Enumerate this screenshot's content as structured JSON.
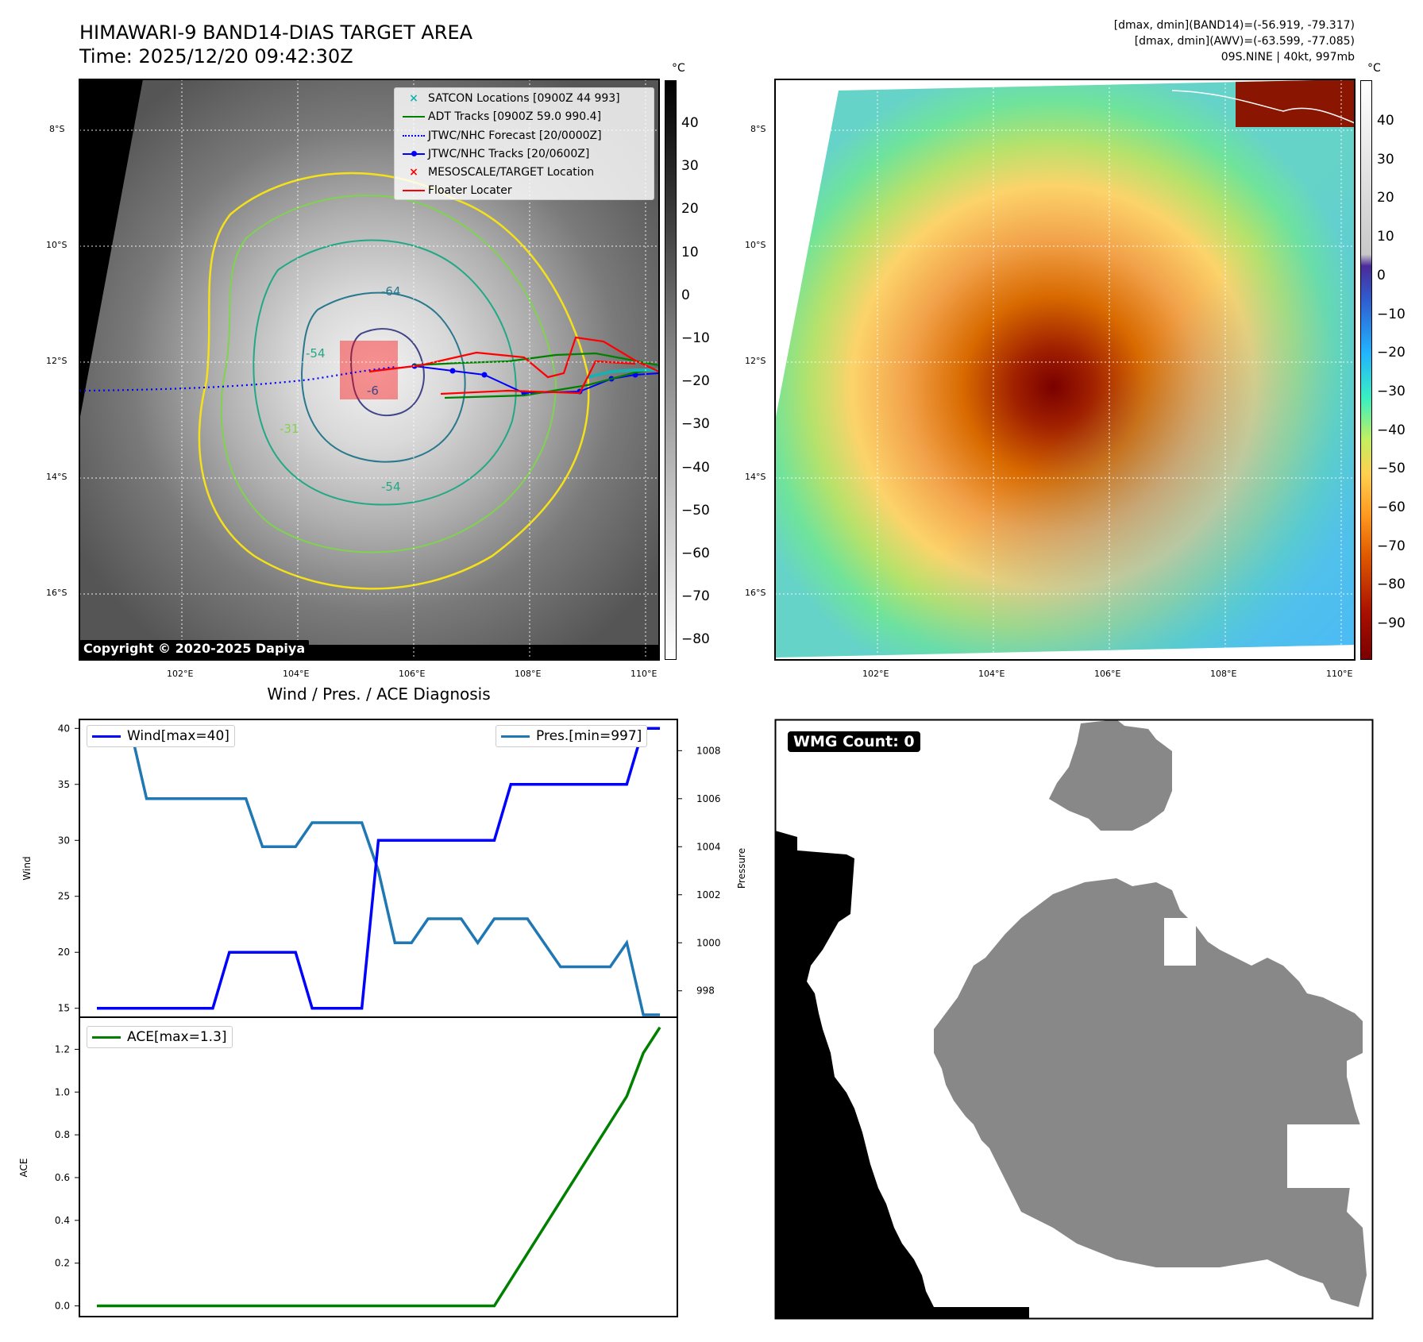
{
  "header": {
    "title_line1": "HIMAWARI-9 BAND14-DIAS TARGET AREA",
    "title_line2": "Time: 2025/12/20 09:42:30Z",
    "stats_line1": "[dmax, dmin](BAND14)=(-56.919, -79.317)",
    "stats_line2": "[dmax, dmin](AWV)=(-63.599, -77.085)",
    "stats_line3": "09S.NINE | 40kt, 997mb"
  },
  "map": {
    "lat_labels": [
      "8°S",
      "10°S",
      "12°S",
      "14°S",
      "16°S"
    ],
    "lon_labels": [
      "102°E",
      "104°E",
      "106°E",
      "108°E",
      "110°E"
    ],
    "copyright": "Copyright © 2020-2025 Dapiya",
    "contour_labels": [
      "-64",
      "-54",
      "-54",
      "-31",
      "-6"
    ],
    "legend": [
      {
        "label": "SATCON Locations [0900Z 44 993]",
        "color": "#1ab0b0",
        "marker": "x"
      },
      {
        "label": "ADT Tracks [0900Z 59.0 990.4]",
        "color": "#008000",
        "marker": "line"
      },
      {
        "label": "JTWC/NHC Forecast [20/0000Z]",
        "color": "#0000ff",
        "marker": "dotted"
      },
      {
        "label": "JTWC/NHC Tracks [20/0600Z]",
        "color": "#0000ff",
        "marker": "line-dot"
      },
      {
        "label": "MESOSCALE/TARGET Location",
        "color": "#ff0000",
        "marker": "x"
      },
      {
        "label": "Floater Locater",
        "color": "#ff0000",
        "marker": "line"
      }
    ]
  },
  "colorbar_gray": {
    "unit": "°C",
    "ticks": [
      "40",
      "30",
      "20",
      "10",
      "0",
      "−10",
      "−20",
      "−30",
      "−40",
      "−50",
      "−60",
      "−70",
      "−80"
    ]
  },
  "colorbar_color": {
    "unit": "°C",
    "ticks": [
      "40",
      "30",
      "20",
      "10",
      "0",
      "−10",
      "−20",
      "−30",
      "−40",
      "−50",
      "−60",
      "−70",
      "−80",
      "−90"
    ]
  },
  "wmg": {
    "label": "WMG Count: 0"
  },
  "chart_data": [
    {
      "type": "line",
      "title": "Wind / Pres. / ACE Diagnosis",
      "ylabel": "Wind",
      "ylabel_right": "Pressure",
      "ylim": [
        14.2,
        40.8
      ],
      "ylim_right": [
        996.9,
        1009.3
      ],
      "yticks": [
        "40",
        "35",
        "30",
        "25",
        "20",
        "15"
      ],
      "yticks_right": [
        "1008",
        "1006",
        "1004",
        "1002",
        "1000",
        "998"
      ],
      "series": [
        {
          "name": "Wind[max=40]",
          "color": "#0000ff",
          "axis": "left",
          "values": [
            15,
            15,
            15,
            15,
            15,
            15,
            15,
            15,
            20,
            20,
            20,
            20,
            20,
            15,
            15,
            15,
            15,
            30,
            30,
            30,
            30,
            30,
            30,
            30,
            30,
            35,
            35,
            35,
            35,
            35,
            35,
            35,
            35,
            40,
            40
          ]
        },
        {
          "name": "Pres.[min=997]",
          "color": "#1f77b4",
          "axis": "right",
          "values": [
            1009,
            1009,
            1009,
            1006,
            1006,
            1006,
            1006,
            1006,
            1006,
            1006,
            1004,
            1004,
            1004,
            1005,
            1005,
            1005,
            1005,
            1003,
            1000,
            1000,
            1001,
            1001,
            1001,
            1000,
            1001,
            1001,
            1001,
            1000,
            999,
            999,
            999,
            999,
            1000,
            997,
            997
          ]
        }
      ]
    },
    {
      "type": "line",
      "ylabel": "ACE",
      "ylim": [
        -0.05,
        1.35
      ],
      "yticks": [
        "1.2",
        "1.0",
        "0.8",
        "0.6",
        "0.4",
        "0.2",
        "0.0"
      ],
      "series": [
        {
          "name": "ACE[max=1.3]",
          "color": "#008000",
          "values": [
            0,
            0,
            0,
            0,
            0,
            0,
            0,
            0,
            0,
            0,
            0,
            0,
            0,
            0,
            0,
            0,
            0,
            0,
            0,
            0,
            0,
            0,
            0,
            0,
            0,
            0.1225,
            0.245,
            0.3675,
            0.49,
            0.6125,
            0.735,
            0.8575,
            0.98,
            1.1825,
            1.3025
          ]
        }
      ]
    }
  ]
}
